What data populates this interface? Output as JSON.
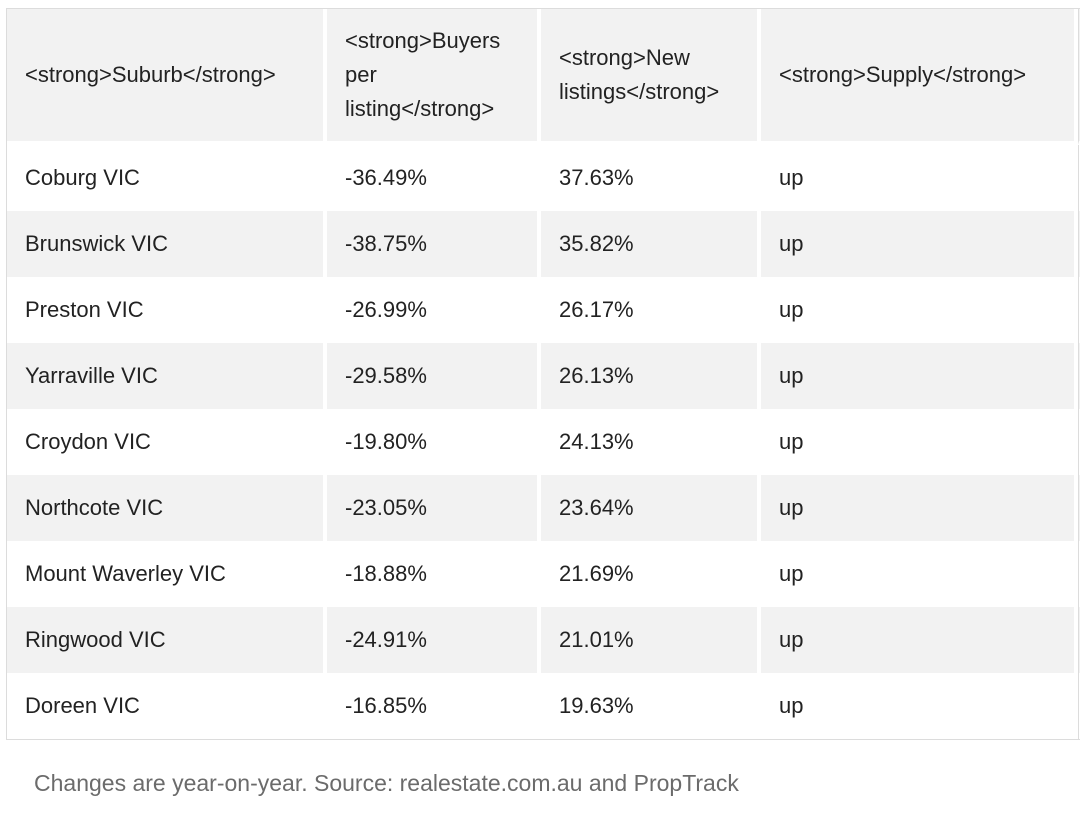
{
  "table": {
    "headers": [
      "<strong>Suburb</strong>",
      "<strong>Buyers per listing</strong>",
      "<strong>New listings</strong>",
      "<strong>Supply</strong>"
    ],
    "rows": [
      [
        "Coburg VIC",
        "-36.49%",
        "37.63%",
        "up"
      ],
      [
        "Brunswick VIC",
        "-38.75%",
        "35.82%",
        "up"
      ],
      [
        "Preston VIC",
        "-26.99%",
        "26.17%",
        "up"
      ],
      [
        "Yarraville VIC",
        "-29.58%",
        "26.13%",
        "up"
      ],
      [
        "Croydon VIC",
        "-19.80%",
        "24.13%",
        "up"
      ],
      [
        "Northcote VIC",
        "-23.05%",
        "23.64%",
        "up"
      ],
      [
        "Mount Waverley VIC",
        "-18.88%",
        "21.69%",
        "up"
      ],
      [
        "Ringwood VIC",
        "-24.91%",
        "21.01%",
        "up"
      ],
      [
        "Doreen VIC",
        "-16.85%",
        "19.63%",
        "up"
      ]
    ]
  },
  "caption": "Changes are year-on-year. Source: realestate.com.au and PropTrack"
}
